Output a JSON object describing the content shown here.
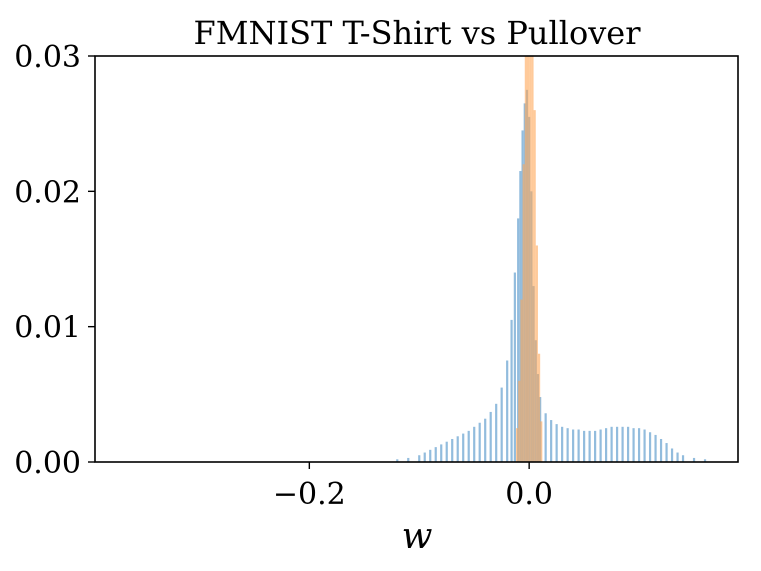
{
  "chart_data": {
    "type": "histogram",
    "title": "FMNIST T-Shirt vs Pullover",
    "xlabel": "w",
    "ylabel": "",
    "xlim": [
      -0.395,
      0.19
    ],
    "ylim": [
      0,
      0.03
    ],
    "x_ticks": [
      -0.2,
      0.0
    ],
    "x_tick_labels": [
      "−0.2",
      "0.0"
    ],
    "y_ticks": [
      0,
      0.01,
      0.02,
      0.03
    ],
    "y_tick_labels": [
      "0.00",
      "0.01",
      "0.02",
      "0.03"
    ],
    "grid": false,
    "legend": "none",
    "series": [
      {
        "color": "#6ea6d2",
        "opacity": 0.75,
        "bin_width": 0.002,
        "bins": [
          [
            -0.12,
            0.0002
          ],
          [
            -0.11,
            0.0003
          ],
          [
            -0.1,
            0.0005
          ],
          [
            -0.095,
            0.0007
          ],
          [
            -0.09,
            0.0009
          ],
          [
            -0.085,
            0.0011
          ],
          [
            -0.08,
            0.0013
          ],
          [
            -0.075,
            0.0015
          ],
          [
            -0.07,
            0.0017
          ],
          [
            -0.065,
            0.0019
          ],
          [
            -0.06,
            0.0021
          ],
          [
            -0.055,
            0.0023
          ],
          [
            -0.05,
            0.0026
          ],
          [
            -0.045,
            0.0029
          ],
          [
            -0.04,
            0.0032
          ],
          [
            -0.035,
            0.0037
          ],
          [
            -0.03,
            0.0043
          ],
          [
            -0.025,
            0.0055
          ],
          [
            -0.02,
            0.0075
          ],
          [
            -0.016,
            0.0105
          ],
          [
            -0.013,
            0.014
          ],
          [
            -0.01,
            0.018
          ],
          [
            -0.008,
            0.0215
          ],
          [
            -0.006,
            0.0245
          ],
          [
            -0.004,
            0.0265
          ],
          [
            -0.002,
            0.0275
          ],
          [
            0.0,
            0.0255
          ],
          [
            0.002,
            0.02
          ],
          [
            0.004,
            0.013
          ],
          [
            0.006,
            0.009
          ],
          [
            0.008,
            0.0065
          ],
          [
            0.01,
            0.0048
          ],
          [
            0.015,
            0.0036
          ],
          [
            0.02,
            0.0031
          ],
          [
            0.025,
            0.0028
          ],
          [
            0.03,
            0.0026
          ],
          [
            0.035,
            0.0025
          ],
          [
            0.04,
            0.0024
          ],
          [
            0.045,
            0.0024
          ],
          [
            0.05,
            0.0023
          ],
          [
            0.055,
            0.0023
          ],
          [
            0.06,
            0.0023
          ],
          [
            0.065,
            0.0024
          ],
          [
            0.07,
            0.0025
          ],
          [
            0.075,
            0.0026
          ],
          [
            0.08,
            0.0026
          ],
          [
            0.085,
            0.0026
          ],
          [
            0.09,
            0.0026
          ],
          [
            0.095,
            0.0025
          ],
          [
            0.1,
            0.0025
          ],
          [
            0.105,
            0.0024
          ],
          [
            0.11,
            0.0022
          ],
          [
            0.115,
            0.002
          ],
          [
            0.12,
            0.0017
          ],
          [
            0.125,
            0.0014
          ],
          [
            0.13,
            0.001
          ],
          [
            0.135,
            0.0007
          ],
          [
            0.14,
            0.0005
          ],
          [
            0.15,
            0.0003
          ],
          [
            0.16,
            0.0002
          ]
        ]
      },
      {
        "color": "#ffa656",
        "opacity": 0.6,
        "bin_width": 0.002,
        "bins": [
          [
            -0.011,
            0.0025
          ],
          [
            -0.009,
            0.006
          ],
          [
            -0.007,
            0.012
          ],
          [
            -0.005,
            0.022
          ],
          [
            -0.003,
            0.03
          ],
          [
            -0.001,
            0.03
          ],
          [
            0.001,
            0.03
          ],
          [
            0.003,
            0.03
          ],
          [
            0.005,
            0.026
          ],
          [
            0.007,
            0.016
          ],
          [
            0.009,
            0.008
          ],
          [
            0.011,
            0.003
          ]
        ]
      }
    ]
  }
}
